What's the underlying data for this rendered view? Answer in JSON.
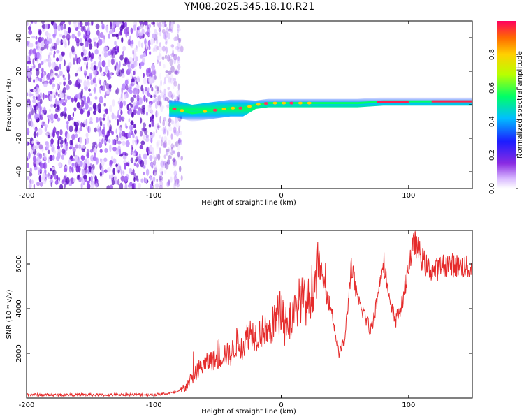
{
  "title": "YM08.2025.345.18.10.R21",
  "chart_data": [
    {
      "type": "heatmap",
      "panel": "spectrogram",
      "xlabel": "Height of straight line (km)",
      "ylabel": "Frequency (Hz)",
      "xlim": [
        -200,
        150
      ],
      "ylim": [
        -50,
        50
      ],
      "x_ticks": [
        -200,
        -100,
        0,
        100
      ],
      "y_ticks": [
        -40,
        -20,
        0,
        20,
        40
      ],
      "x_tick_labels": [
        "-200",
        "-100",
        "0",
        "100"
      ],
      "y_tick_labels": [
        "-40",
        "-20",
        "0",
        "20",
        "40"
      ],
      "noise_region_km": [
        -200,
        -78
      ],
      "signal_track": {
        "x": [
          -88,
          -80,
          -70,
          -60,
          -50,
          -40,
          -30,
          -20,
          -10,
          0,
          10,
          20,
          30,
          40,
          60,
          80,
          100,
          120,
          150
        ],
        "freq": [
          -2,
          -3,
          -5,
          -4,
          -3,
          -2,
          -2,
          0,
          1,
          1,
          1,
          1,
          1,
          1,
          1,
          2,
          2,
          2,
          2
        ]
      },
      "colorbar": {
        "label": "Normalized spectral amplitude",
        "range": [
          0,
          1
        ],
        "ticks": [
          0.0,
          0.2,
          0.4,
          0.6,
          0.8
        ],
        "tick_labels": [
          "0.0",
          "0.2",
          "0.4",
          "0.6",
          "0.8"
        ]
      }
    },
    {
      "type": "line",
      "panel": "snr",
      "xlabel": "Height of straight line (km)",
      "ylabel": "SNR (10 * v/v)",
      "xlim": [
        -200,
        150
      ],
      "ylim": [
        0,
        7500
      ],
      "x_ticks": [
        -200,
        -100,
        0,
        100
      ],
      "y_ticks": [
        2000,
        4000,
        6000
      ],
      "x_tick_labels": [
        "-200",
        "-100",
        "0",
        "100"
      ],
      "y_tick_labels": [
        "2000",
        "4000",
        "6000"
      ],
      "series": [
        {
          "name": "SNR",
          "color": "#e52b2b",
          "x": [
            -200,
            -180,
            -160,
            -140,
            -120,
            -100,
            -90,
            -80,
            -75,
            -70,
            -65,
            -60,
            -55,
            -50,
            -45,
            -40,
            -35,
            -30,
            -25,
            -20,
            -15,
            -10,
            -5,
            0,
            5,
            10,
            15,
            20,
            25,
            30,
            35,
            40,
            45,
            50,
            55,
            60,
            65,
            70,
            75,
            80,
            85,
            90,
            95,
            100,
            105,
            110,
            115,
            120,
            130,
            140,
            150
          ],
          "y": [
            160,
            140,
            150,
            140,
            160,
            150,
            200,
            280,
            500,
            900,
            1300,
            1500,
            1700,
            1700,
            2000,
            1900,
            2500,
            2300,
            3000,
            2800,
            3000,
            2900,
            3500,
            4000,
            3300,
            3700,
            4500,
            4200,
            5000,
            5900,
            4800,
            3800,
            2000,
            2600,
            6000,
            4300,
            3800,
            3000,
            4300,
            6300,
            4200,
            3500,
            4200,
            6000,
            7000,
            6300,
            5800,
            5700,
            6000,
            5900,
            5800
          ]
        }
      ]
    }
  ],
  "colors": {
    "snr_line": "#e52b2b",
    "noise": "#7a28d8"
  }
}
